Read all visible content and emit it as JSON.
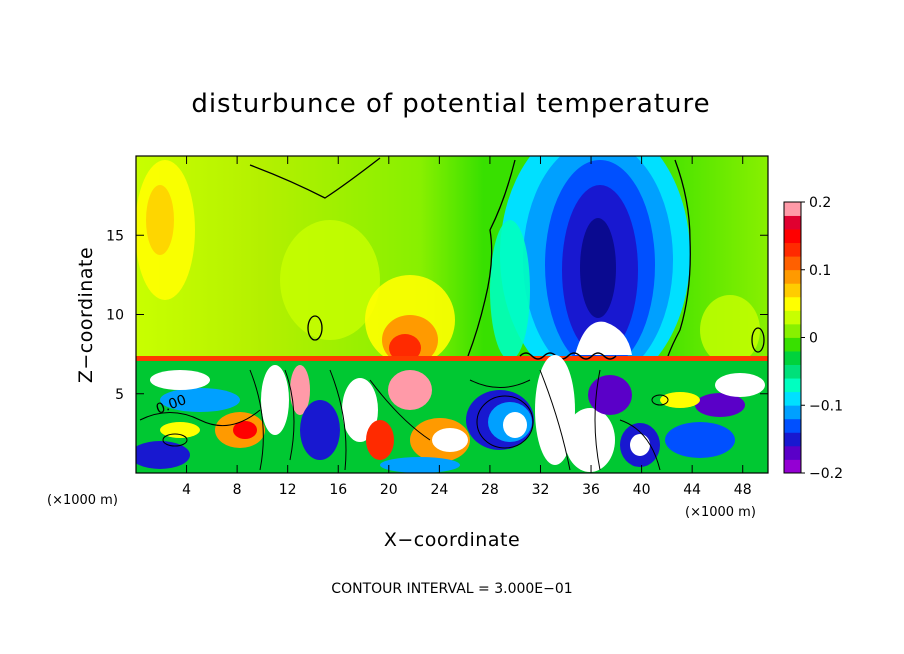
{
  "chart_data": {
    "type": "heatmap",
    "title": "disturbunce of potential temperature",
    "xlabel": "X−coordinate",
    "ylabel": "Z−coordinate",
    "x_unit": "(×1000 m)",
    "z_unit": "(×1000 m)",
    "xlim": [
      0,
      50
    ],
    "ylim": [
      0,
      20
    ],
    "x_ticks": [
      4,
      8,
      12,
      16,
      20,
      24,
      28,
      32,
      36,
      40,
      44,
      48
    ],
    "x_tick_labels": [
      "4",
      "8",
      "12",
      "16",
      "20",
      "24",
      "28",
      "32",
      "36",
      "40",
      "44",
      "48"
    ],
    "y_ticks": [
      5,
      10,
      15
    ],
    "y_tick_labels": [
      "5",
      "10",
      "15"
    ],
    "colorbar": {
      "range": [
        -0.2,
        0.2
      ],
      "ticks": [
        0.2,
        0.1,
        0,
        -0.1,
        -0.2
      ],
      "tick_labels": [
        "0.2",
        "0.1",
        "0",
        "−0.1",
        "−0.2"
      ],
      "colors": [
        "#9400d3",
        "#5a00c8",
        "#1818d0",
        "#0050ff",
        "#00a0ff",
        "#00e0ff",
        "#00ffc0",
        "#00e07a",
        "#00d23c",
        "#38e000",
        "#88f000",
        "#c8ff00",
        "#ffff00",
        "#ffcc00",
        "#ff9a00",
        "#ff6000",
        "#ff2a00",
        "#ff0000",
        "#e00030",
        "#ff9aa8"
      ]
    },
    "contour_label": "0.00",
    "annotation": "CONTOUR INTERVAL = 3.000E−01",
    "features": [
      {
        "name": "negative-core",
        "x": 36,
        "z": 13,
        "value": -0.18
      },
      {
        "name": "upper-left-positive",
        "x": 3,
        "z": 16,
        "value": 0.12
      },
      {
        "name": "inversion-positive",
        "x": 21,
        "z": 9,
        "value": 0.14
      }
    ]
  }
}
